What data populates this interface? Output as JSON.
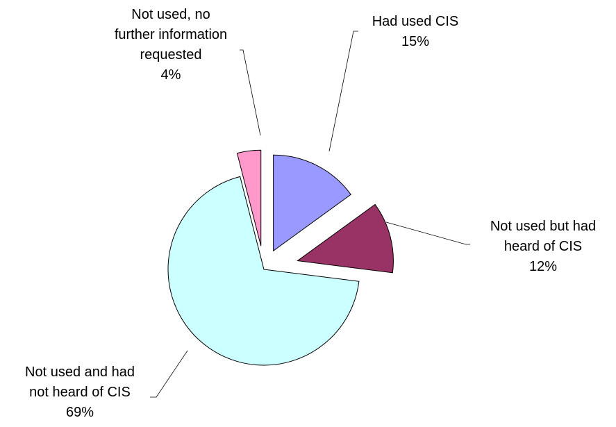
{
  "chart_data": {
    "type": "pie",
    "title": "",
    "slices": [
      {
        "name": "Had used CIS",
        "lines": [
          "Had used CIS"
        ],
        "value": 15,
        "value_label": "15%",
        "color": "#9999ff"
      },
      {
        "name": "Not used but had heard of CIS",
        "lines": [
          "Not used but had",
          "heard of CIS"
        ],
        "value": 12,
        "value_label": "12%",
        "color": "#993366"
      },
      {
        "name": "Not used and had not heard of CIS",
        "lines": [
          "Not used and had",
          "not heard of CIS"
        ],
        "value": 69,
        "value_label": "69%",
        "color": "#ccffff"
      },
      {
        "name": "Not used, no further information requested",
        "lines": [
          "Not used, no",
          "further information",
          "requested"
        ],
        "value": 4,
        "value_label": "4%",
        "color": "#ff99cc"
      }
    ],
    "exploded": true,
    "start_angle": "12 o'clock",
    "direction": "clockwise",
    "legend": "none",
    "grid": false
  }
}
